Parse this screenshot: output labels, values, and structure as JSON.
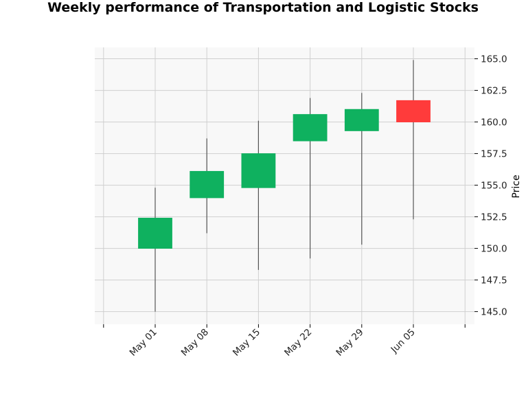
{
  "chart_data": {
    "type": "candlestick",
    "title": "Weekly performance of Transportation and Logistic Stocks",
    "xlabel": "",
    "ylabel": "Price",
    "x_tick_labels": [
      "May 01",
      "May 08",
      "May 15",
      "May 22",
      "May 29",
      "Jun 05"
    ],
    "y_ticks": [
      "145.0",
      "147.5",
      "150.0",
      "152.5",
      "155.0",
      "157.5",
      "160.0",
      "162.5",
      "165.0"
    ],
    "ylim": [
      144.0,
      165.9
    ],
    "y_axis_side": "right",
    "grid": true,
    "colors": {
      "up": "#0fb15f",
      "down": "#ff3b3b",
      "wick": "#555555",
      "grid": "#cfcfcf",
      "plot_bg": "#f8f8f8"
    },
    "candles": [
      {
        "date": "May 01",
        "open": 150.0,
        "high": 154.8,
        "low": 145.0,
        "close": 152.4
      },
      {
        "date": "May 08",
        "open": 154.0,
        "high": 158.7,
        "low": 151.2,
        "close": 156.1
      },
      {
        "date": "May 15",
        "open": 154.8,
        "high": 160.1,
        "low": 148.3,
        "close": 157.5
      },
      {
        "date": "May 22",
        "open": 158.5,
        "high": 161.9,
        "low": 149.2,
        "close": 160.6
      },
      {
        "date": "May 29",
        "open": 159.3,
        "high": 162.3,
        "low": 150.3,
        "close": 161.0
      },
      {
        "date": "Jun 05",
        "open": 161.7,
        "high": 164.9,
        "low": 152.3,
        "close": 160.0
      }
    ]
  }
}
